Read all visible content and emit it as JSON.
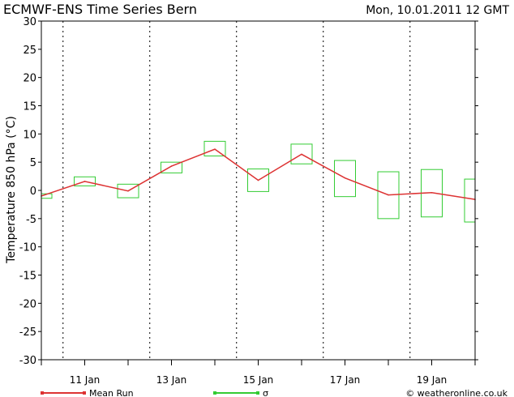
{
  "chart_data": {
    "type": "line",
    "title": "ECMWF-ENS Time Series Bern",
    "timestamp": "Mon, 10.01.2011 12 GMT",
    "ylabel": "Temperature 850 hPa (°C)",
    "xlabel": "",
    "ylim": [
      -30,
      30
    ],
    "yticks": [
      30,
      25,
      20,
      15,
      10,
      5,
      0,
      -5,
      -10,
      -15,
      -20,
      -25,
      -30
    ],
    "xlim": [
      10.0,
      20.0
    ],
    "xtick_days": [
      11,
      13,
      15,
      17,
      19
    ],
    "xtick_labels": [
      "11 Jan",
      "13 Jan",
      "15 Jan",
      "17 Jan",
      "19 Jan"
    ],
    "midnight_gridlines": [
      10.5,
      12.5,
      14.5,
      16.5,
      18.5
    ],
    "series": [
      {
        "name": "Mean Run",
        "color": "#dd3333",
        "x": [
          10.0,
          11.0,
          12.0,
          13.0,
          14.0,
          15.0,
          16.0,
          17.0,
          18.0,
          19.0,
          20.0
        ],
        "values": [
          -1.0,
          1.6,
          -0.1,
          4.3,
          7.3,
          1.8,
          6.4,
          2.2,
          -0.8,
          -0.4,
          -1.6
        ]
      }
    ],
    "sigma_boxes": {
      "name": "σ",
      "color": "#33cc33",
      "boxes": [
        {
          "x": 10.0,
          "low": -1.4,
          "high": -0.6
        },
        {
          "x": 11.0,
          "low": 0.8,
          "high": 2.4
        },
        {
          "x": 12.0,
          "low": -1.3,
          "high": 1.1
        },
        {
          "x": 13.0,
          "low": 3.1,
          "high": 5.0
        },
        {
          "x": 14.0,
          "low": 6.1,
          "high": 8.7
        },
        {
          "x": 15.0,
          "low": -0.2,
          "high": 3.8
        },
        {
          "x": 16.0,
          "low": 4.7,
          "high": 8.2
        },
        {
          "x": 17.0,
          "low": -1.1,
          "high": 5.3
        },
        {
          "x": 18.0,
          "low": -5.0,
          "high": 3.3
        },
        {
          "x": 19.0,
          "low": -4.7,
          "high": 3.7
        },
        {
          "x": 20.0,
          "low": -5.6,
          "high": 2.0
        }
      ]
    },
    "legend": [
      {
        "label": "Mean Run",
        "color": "#dd3333"
      },
      {
        "label": "σ",
        "color": "#33cc33"
      }
    ],
    "credit": "© weatheronline.co.uk",
    "grid": "vertical dotted at midnight"
  }
}
